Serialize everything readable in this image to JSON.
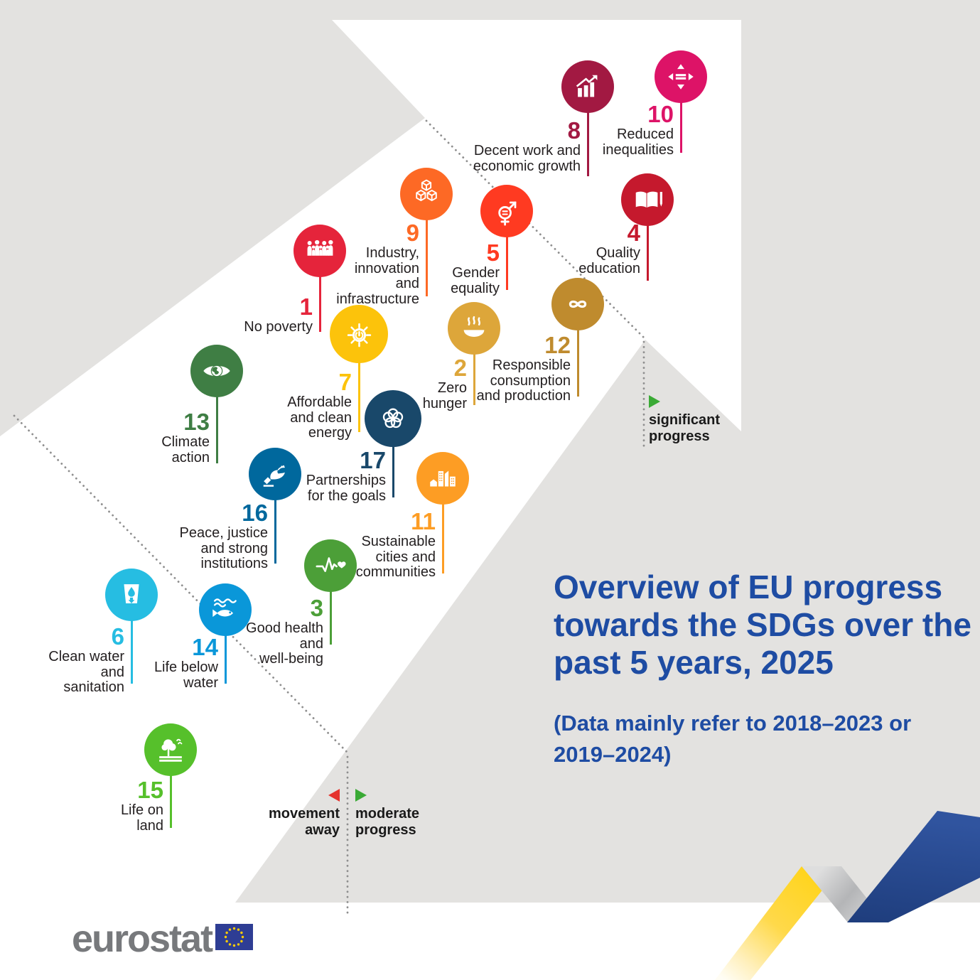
{
  "title": {
    "lines": [
      "Overview of EU progress",
      "towards the SDGs over the",
      "past 5 years, 2025"
    ],
    "subtitle_lines": [
      "(Data mainly refer to 2018–2023 or",
      "2019–2024)"
    ],
    "color": "#1e4ca3"
  },
  "legend": {
    "significant": {
      "lines": [
        "significant",
        "progress"
      ],
      "marker": "green-right-triangle"
    },
    "moderate": {
      "lines": [
        "moderate",
        "progress"
      ],
      "marker": "green-right-triangle"
    },
    "away": {
      "lines": [
        "movement",
        "away"
      ],
      "marker": "red-left-triangle"
    },
    "green": "#3aaa35",
    "red": "#e5332d"
  },
  "goals": [
    {
      "number": "1",
      "label_lines": [
        "No poverty"
      ],
      "color": "#E5243B",
      "icon": "people-icon"
    },
    {
      "number": "2",
      "label_lines": [
        "Zero",
        "hunger"
      ],
      "color": "#DDA63A",
      "icon": "food-bowl-icon"
    },
    {
      "number": "3",
      "label_lines": [
        "Good health",
        "and",
        "well-being"
      ],
      "color": "#4C9F38",
      "icon": "heartbeat-icon"
    },
    {
      "number": "4",
      "label_lines": [
        "Quality",
        "education"
      ],
      "color": "#C5192D",
      "icon": "book-pencil-icon"
    },
    {
      "number": "5",
      "label_lines": [
        "Gender",
        "equality"
      ],
      "color": "#FF3A21",
      "icon": "gender-equality-icon"
    },
    {
      "number": "6",
      "label_lines": [
        "Clean water",
        "and",
        "sanitation"
      ],
      "color": "#26BDE2",
      "icon": "water-drop-glass-icon"
    },
    {
      "number": "7",
      "label_lines": [
        "Affordable",
        "and clean",
        "energy"
      ],
      "color": "#FCC30B",
      "icon": "sun-power-icon"
    },
    {
      "number": "8",
      "label_lines": [
        "Decent work and",
        "economic growth"
      ],
      "color": "#A21942",
      "icon": "growth-chart-icon"
    },
    {
      "number": "9",
      "label_lines": [
        "Industry,",
        "innovation",
        "and",
        "infrastructure"
      ],
      "color": "#FD6925",
      "icon": "cubes-icon"
    },
    {
      "number": "10",
      "label_lines": [
        "Reduced",
        "inequalities"
      ],
      "color": "#DD1367",
      "icon": "equality-arrows-icon"
    },
    {
      "number": "11",
      "label_lines": [
        "Sustainable",
        "cities and",
        "communities"
      ],
      "color": "#FD9D24",
      "icon": "city-buildings-icon"
    },
    {
      "number": "12",
      "label_lines": [
        "Responsible",
        "consumption",
        "and production"
      ],
      "color": "#BF8B2E",
      "icon": "infinity-loop-icon"
    },
    {
      "number": "13",
      "label_lines": [
        "Climate",
        "action"
      ],
      "color": "#3F7E44",
      "icon": "eye-globe-icon"
    },
    {
      "number": "14",
      "label_lines": [
        "Life below",
        "water"
      ],
      "color": "#0A97D9",
      "icon": "fish-waves-icon"
    },
    {
      "number": "15",
      "label_lines": [
        "Life on",
        "land"
      ],
      "color": "#56C02B",
      "icon": "tree-land-icon"
    },
    {
      "number": "16",
      "label_lines": [
        "Peace, justice",
        "and strong",
        "institutions"
      ],
      "color": "#00689D",
      "icon": "dove-gavel-icon"
    },
    {
      "number": "17",
      "label_lines": [
        "Partnerships",
        "for the goals"
      ],
      "color": "#19486A",
      "icon": "circles-flower-icon"
    }
  ],
  "logo": {
    "text": "eurostat"
  },
  "colors": {
    "background_gray": "#e3e2e0",
    "arrow_white": "#ffffff",
    "dotted_line": "#8f8f8f",
    "label_text": "#231f20",
    "logo_gray": "#77797c",
    "flag_blue": "#2e3d94",
    "flag_star_yellow": "#ffcc00",
    "ribbon_yellow": "#ffd314",
    "ribbon_blue": "#2c4f9c"
  }
}
